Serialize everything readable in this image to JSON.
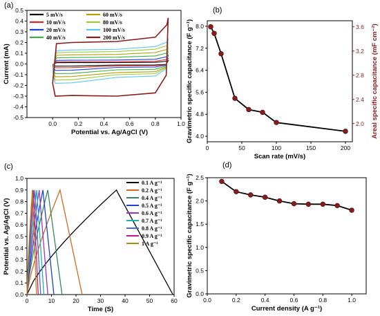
{
  "chart_data": [
    {
      "panel": "(a)",
      "type": "line",
      "xlabel": "Potential vs. Ag/AgCl (V)",
      "ylabel": "Current (mA)",
      "xlim": [
        -0.2,
        1.0
      ],
      "ylim": [
        -0.5,
        0.5
      ],
      "xticks": [
        "0.0",
        "0.2",
        "0.4",
        "0.6",
        "0.8",
        "1.0"
      ],
      "yticks": [
        "-0.5",
        "-0.4",
        "-0.3",
        "-0.2",
        "-0.1",
        "0.0",
        "0.1",
        "0.2",
        "0.3",
        "0.4",
        "0.5"
      ],
      "legend_position": "top-left",
      "series": [
        {
          "name": "5 mV/s",
          "color": "#000000",
          "upper": 0.012,
          "lower": -0.01,
          "peak": 0.03,
          "trough": -0.02
        },
        {
          "name": "10 mV/s",
          "color": "#d62728",
          "upper": 0.02,
          "lower": -0.018,
          "peak": 0.05,
          "trough": -0.035
        },
        {
          "name": "20 mV/s",
          "color": "#1f3fd6",
          "upper": 0.035,
          "lower": -0.032,
          "peak": 0.08,
          "trough": -0.06
        },
        {
          "name": "40 mV/s",
          "color": "#3cb043",
          "upper": 0.06,
          "lower": -0.055,
          "peak": 0.12,
          "trough": -0.09
        },
        {
          "name": "60 mV/s",
          "color": "#b0a000",
          "upper": 0.085,
          "lower": -0.08,
          "peak": 0.16,
          "trough": -0.12
        },
        {
          "name": "80 mV/s",
          "color": "#9acd32",
          "upper": 0.11,
          "lower": -0.1,
          "peak": 0.2,
          "trough": -0.15
        },
        {
          "name": "100 mV/s",
          "color": "#5ac8fa",
          "upper": 0.13,
          "lower": -0.125,
          "peak": 0.24,
          "trough": -0.18
        },
        {
          "name": "200 mV/s",
          "color": "#8b1a1a",
          "upper": 0.2,
          "lower": -0.3,
          "peak": 0.43,
          "trough": -0.3
        }
      ]
    },
    {
      "panel": "(b)",
      "type": "scatter",
      "xlabel": "Scan rate (mV/s)",
      "ylabel": "Gravimetric specific capacitance (F g⁻¹)",
      "ylabel_right": "Areal specific capacitance (mF cm⁻²)",
      "xlim": [
        0,
        210
      ],
      "ylim": [
        3.8,
        8.2
      ],
      "ylim_right": [
        1.7,
        3.7
      ],
      "xticks": [
        "0",
        "50",
        "100",
        "150",
        "200"
      ],
      "yticks": [
        "4.0",
        "4.8",
        "5.6",
        "6.4",
        "7.2",
        "8.0"
      ],
      "yticks_right": [
        "2.0",
        "2.4",
        "2.8",
        "3.2",
        "3.6"
      ],
      "x": [
        5,
        10,
        20,
        40,
        60,
        80,
        100,
        200
      ],
      "y": [
        7.98,
        7.74,
        7.0,
        5.38,
        4.97,
        4.87,
        4.5,
        4.18
      ],
      "line_color": "#000000",
      "marker_color": "#8b1a1a"
    },
    {
      "panel": "(c)",
      "type": "line",
      "xlabel": "Time (S)",
      "ylabel": "Potential vs. Ag/AgCl (V)",
      "xlim": [
        0,
        60
      ],
      "ylim": [
        0,
        1.0
      ],
      "xticks": [
        "0",
        "10",
        "20",
        "30",
        "40",
        "50",
        "60"
      ],
      "yticks": [
        "0.0",
        "0.1",
        "0.2",
        "0.3",
        "0.4",
        "0.5",
        "0.6",
        "0.7",
        "0.8",
        "0.9",
        "1.0"
      ],
      "legend_position": "right",
      "series": [
        {
          "name": "0.1 A g⁻¹",
          "color": "#000000",
          "charge_end": 36.5,
          "discharge_end": 59.5
        },
        {
          "name": "0.2 A g⁻¹",
          "color": "#d2691e",
          "charge_end": 13.5,
          "discharge_end": 22.5
        },
        {
          "name": "0.4 A g⁻¹",
          "color": "#2e8b57",
          "charge_end": 8.5,
          "discharge_end": 14.3
        },
        {
          "name": "0.5 A g⁻¹",
          "color": "#1f3fd6",
          "charge_end": 6.5,
          "discharge_end": 11.0
        },
        {
          "name": "0.6 A g⁻¹",
          "color": "#9932cc",
          "charge_end": 5.0,
          "discharge_end": 8.5
        },
        {
          "name": "0.7 A g⁻¹",
          "color": "#20b2aa",
          "charge_end": 4.0,
          "discharge_end": 6.9
        },
        {
          "name": "0.8 A g⁻¹",
          "color": "#4169e1",
          "charge_end": 3.2,
          "discharge_end": 5.6
        },
        {
          "name": "0.9 A g⁻¹",
          "color": "#c71585",
          "charge_end": 2.6,
          "discharge_end": 4.6
        },
        {
          "name": "1 A g⁻¹",
          "color": "#b8860b",
          "charge_end": 2.2,
          "discharge_end": 3.9
        }
      ]
    },
    {
      "panel": "(d)",
      "type": "scatter",
      "xlabel": "Current density (A g⁻¹)",
      "ylabel": "Gravimetric specific capacitance (F g⁻¹)",
      "xlim": [
        0,
        1.1
      ],
      "ylim": [
        0,
        2.5
      ],
      "xticks": [
        "0.0",
        "0.2",
        "0.4",
        "0.6",
        "0.8",
        "1.0"
      ],
      "yticks": [
        "0.0",
        "0.5",
        "1.0",
        "1.5",
        "2.0",
        "2.5"
      ],
      "x": [
        0.1,
        0.2,
        0.3,
        0.4,
        0.5,
        0.6,
        0.7,
        0.8,
        0.9,
        1.0
      ],
      "y": [
        2.42,
        2.2,
        2.13,
        2.08,
        2.0,
        1.94,
        1.93,
        1.93,
        1.9,
        1.8
      ],
      "line_color": "#000000",
      "marker_color": "#8b1a1a"
    }
  ]
}
